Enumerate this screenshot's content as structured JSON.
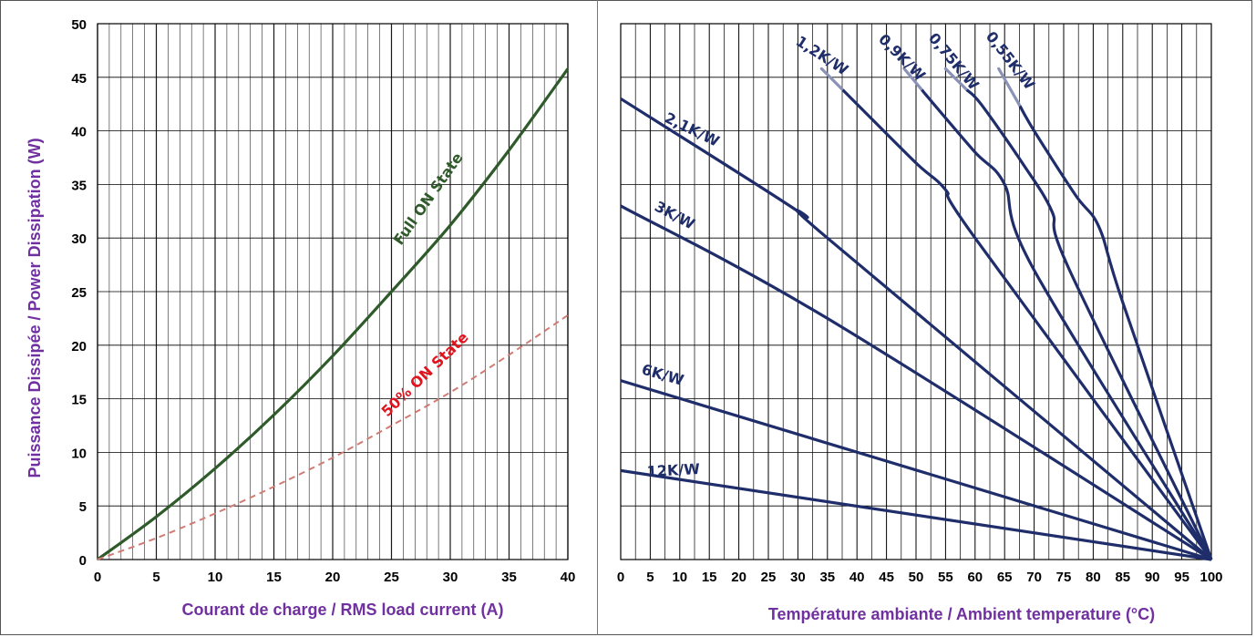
{
  "colors": {
    "axis_label": "#7030a0",
    "full_on": "#2f5a2a",
    "half_on_line": "#d07c74",
    "half_on_text": "#e0141e",
    "derating": "#1f2e6b",
    "derating_fade": "#8a93b5",
    "grid": "#000000"
  },
  "chart_data": [
    {
      "type": "line",
      "ylabel": "Puissance Dissipée / Power Dissipation (W)",
      "xlabel": "Courant de charge / RMS load current (A)",
      "xlim": [
        0,
        40
      ],
      "ylim": [
        0,
        50
      ],
      "x_ticks": [
        "0",
        "5",
        "10",
        "15",
        "20",
        "25",
        "30",
        "35",
        "40"
      ],
      "y_ticks": [
        "0",
        "5",
        "10",
        "15",
        "20",
        "25",
        "30",
        "35",
        "40",
        "45",
        "50"
      ],
      "grid": true,
      "series": [
        {
          "name": "Full ON State",
          "style": "solid",
          "x": [
            0,
            5,
            10,
            15,
            20,
            25,
            30,
            35,
            40
          ],
          "y": [
            0,
            4,
            8.5,
            13.5,
            19,
            25,
            31.2,
            38.2,
            45.8
          ]
        },
        {
          "name": "50% ON State",
          "style": "dashed",
          "x": [
            0,
            5,
            10,
            15,
            20,
            25,
            30,
            35,
            40
          ],
          "y": [
            0,
            2,
            4.3,
            6.8,
            9.5,
            12.5,
            15.6,
            19.1,
            22.8
          ]
        }
      ]
    },
    {
      "type": "line",
      "xlabel": "Température ambiante / Ambient temperature (°C)",
      "xlim": [
        0,
        100
      ],
      "ylim": [
        0,
        50
      ],
      "x_ticks": [
        "0",
        "5",
        "10",
        "15",
        "20",
        "25",
        "30",
        "35",
        "40",
        "45",
        "50",
        "55",
        "60",
        "65",
        "70",
        "75",
        "80",
        "85",
        "90",
        "95",
        "100"
      ],
      "grid": true,
      "series": [
        {
          "name": "12K/W",
          "x": [
            0,
            100
          ],
          "y": [
            8.3,
            0
          ]
        },
        {
          "name": "6K/W",
          "x": [
            0,
            100
          ],
          "y": [
            16.7,
            0
          ]
        },
        {
          "name": "3K/W",
          "x": [
            0,
            35,
            100
          ],
          "y": [
            33,
            22.5,
            0
          ]
        },
        {
          "name": "2,1K/W",
          "x": [
            0,
            30,
            35,
            100
          ],
          "y": [
            43,
            32.5,
            30,
            0
          ]
        },
        {
          "name": "1,2K/W",
          "x": [
            34,
            40,
            50,
            55,
            60,
            100
          ],
          "y": [
            45.8,
            42.5,
            37,
            34.5,
            30,
            0
          ]
        },
        {
          "name": "0,9K/W",
          "x": [
            48,
            53,
            60,
            65,
            70,
            100
          ],
          "y": [
            45.8,
            42.5,
            38,
            35,
            27,
            0
          ]
        },
        {
          "name": "0,75K/W",
          "x": [
            55,
            61,
            68,
            73,
            76,
            100
          ],
          "y": [
            45.8,
            42.5,
            37,
            32.5,
            27,
            0
          ]
        },
        {
          "name": "0,55K/W",
          "x": [
            64,
            70,
            77,
            81,
            85,
            100
          ],
          "y": [
            45.8,
            40,
            34,
            31,
            24,
            0
          ]
        }
      ]
    }
  ]
}
